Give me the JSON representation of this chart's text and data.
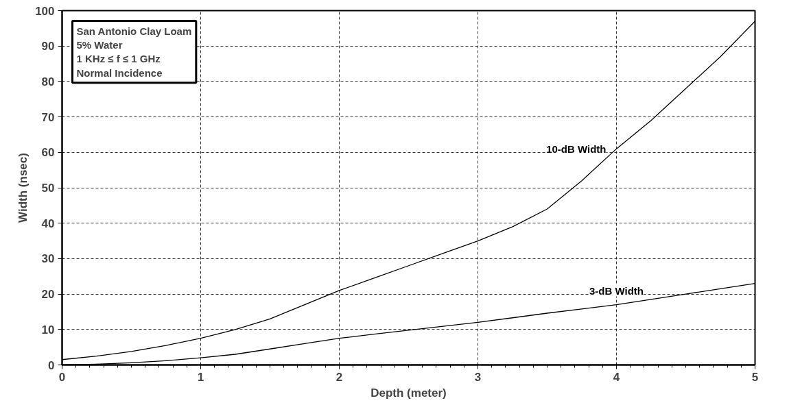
{
  "chart_data": {
    "type": "line",
    "xlabel": "Depth (meter)",
    "ylabel": "Width (nsec)",
    "xlim": [
      0,
      5
    ],
    "ylim": [
      0,
      100
    ],
    "xticks": [
      0,
      1,
      2,
      3,
      4,
      5
    ],
    "yticks": [
      0,
      10,
      20,
      30,
      40,
      50,
      60,
      70,
      80,
      90,
      100
    ],
    "grid": true,
    "line_style": "solid",
    "marker": "none",
    "series": [
      {
        "name": "10-dB Width",
        "color": "#000000",
        "x": [
          0,
          0.25,
          0.5,
          0.75,
          1,
          1.25,
          1.5,
          1.75,
          2,
          2.25,
          2.5,
          2.75,
          3,
          3.25,
          3.5,
          3.75,
          4,
          4.25,
          4.5,
          4.75,
          5
        ],
        "values": [
          1.5,
          2.5,
          3.8,
          5.5,
          7.5,
          10,
          13,
          17,
          21,
          24.5,
          28,
          31.5,
          35,
          39,
          44,
          52,
          61,
          69,
          78,
          87,
          97
        ]
      },
      {
        "name": "3-dB Width",
        "color": "#000000",
        "x": [
          0,
          0.25,
          0.5,
          0.75,
          1,
          1.25,
          1.5,
          1.75,
          2,
          2.25,
          2.5,
          2.75,
          3,
          3.25,
          3.5,
          3.75,
          4,
          4.25,
          4.5,
          4.75,
          5
        ],
        "values": [
          0,
          0.2,
          0.6,
          1.2,
          2,
          3,
          4.5,
          6,
          7.5,
          8.7,
          9.8,
          10.9,
          12,
          13.3,
          14.6,
          15.8,
          17,
          18.5,
          20,
          21.5,
          23
        ]
      }
    ],
    "annotations": [
      "San Antonio Clay Loam\n5% Water\n1 KHz ≤ f ≤ 1 GHz\nNormal Incidence"
    ]
  }
}
